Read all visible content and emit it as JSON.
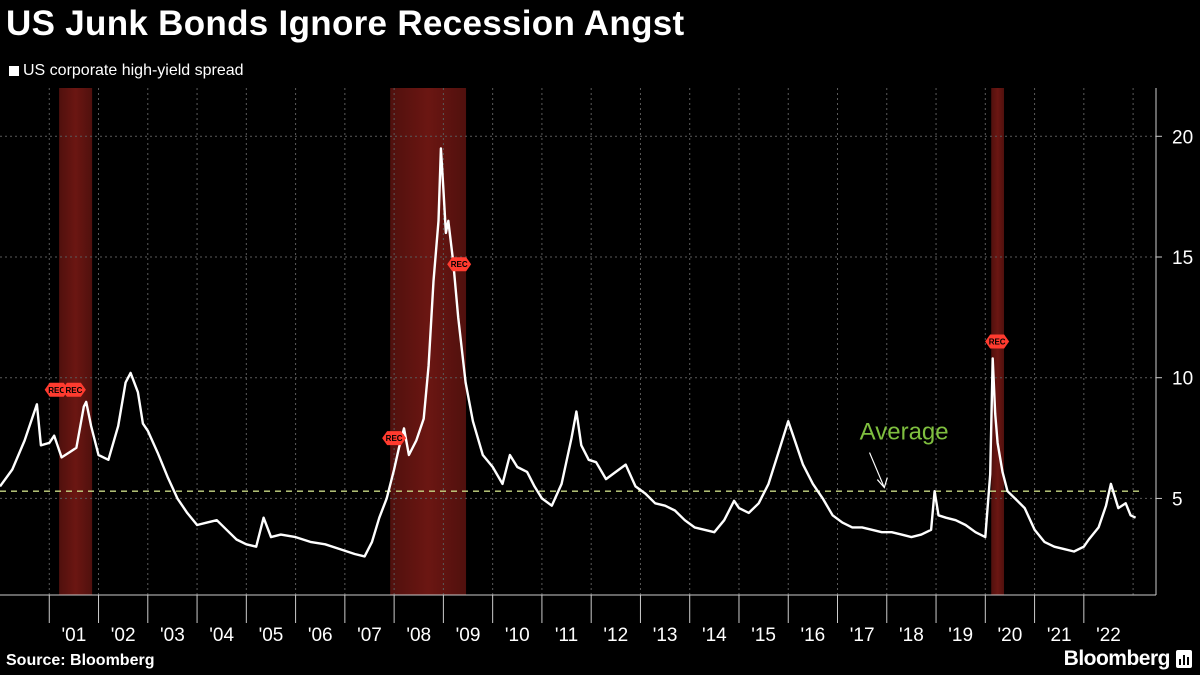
{
  "header": {
    "title": "US Junk Bonds Ignore Recession Angst",
    "legend_label": "US corporate high-yield spread"
  },
  "footer": {
    "source": "Source: Bloomberg",
    "brand": "Bloomberg"
  },
  "chart_data": {
    "type": "line",
    "series": [
      {
        "name": "US corporate high-yield spread",
        "x": [
          2000.0,
          2000.25,
          2000.5,
          2000.75,
          2000.83,
          2001.0,
          2001.1,
          2001.25,
          2001.4,
          2001.55,
          2001.7,
          2001.75,
          2001.85,
          2002.0,
          2002.2,
          2002.4,
          2002.55,
          2002.65,
          2002.8,
          2002.9,
          2003.0,
          2003.2,
          2003.4,
          2003.6,
          2003.8,
          2004.0,
          2004.2,
          2004.4,
          2004.6,
          2004.8,
          2005.0,
          2005.2,
          2005.35,
          2005.5,
          2005.7,
          2006.0,
          2006.3,
          2006.6,
          2006.9,
          2007.2,
          2007.4,
          2007.55,
          2007.7,
          2007.85,
          2008.0,
          2008.1,
          2008.2,
          2008.3,
          2008.45,
          2008.6,
          2008.7,
          2008.8,
          2008.9,
          2008.95,
          2009.0,
          2009.05,
          2009.1,
          2009.2,
          2009.3,
          2009.45,
          2009.6,
          2009.8,
          2010.0,
          2010.2,
          2010.35,
          2010.5,
          2010.7,
          2010.85,
          2011.0,
          2011.2,
          2011.4,
          2011.6,
          2011.7,
          2011.8,
          2011.95,
          2012.1,
          2012.3,
          2012.5,
          2012.7,
          2012.9,
          2013.1,
          2013.3,
          2013.5,
          2013.7,
          2013.9,
          2014.1,
          2014.3,
          2014.5,
          2014.7,
          2014.9,
          2015.0,
          2015.2,
          2015.4,
          2015.6,
          2015.8,
          2016.0,
          2016.1,
          2016.3,
          2016.5,
          2016.7,
          2016.9,
          2017.1,
          2017.3,
          2017.5,
          2017.7,
          2017.9,
          2018.1,
          2018.3,
          2018.5,
          2018.7,
          2018.9,
          2018.97,
          2019.05,
          2019.2,
          2019.4,
          2019.6,
          2019.8,
          2020.0,
          2020.1,
          2020.15,
          2020.2,
          2020.25,
          2020.35,
          2020.45,
          2020.6,
          2020.8,
          2021.0,
          2021.2,
          2021.4,
          2021.6,
          2021.8,
          2022.0,
          2022.1,
          2022.3,
          2022.45,
          2022.55,
          2022.7,
          2022.85,
          2022.95,
          2023.05
        ],
        "values": [
          5.5,
          6.2,
          7.4,
          8.9,
          7.2,
          7.3,
          7.6,
          6.7,
          6.9,
          7.1,
          8.8,
          9.0,
          8.0,
          6.8,
          6.6,
          8.0,
          9.8,
          10.2,
          9.4,
          8.1,
          7.8,
          6.9,
          5.9,
          5.0,
          4.4,
          3.9,
          4.0,
          4.1,
          3.7,
          3.3,
          3.1,
          3.0,
          4.2,
          3.4,
          3.5,
          3.4,
          3.2,
          3.1,
          2.9,
          2.7,
          2.6,
          3.2,
          4.2,
          5.0,
          6.2,
          7.1,
          7.9,
          6.8,
          7.4,
          8.3,
          10.5,
          14.0,
          16.5,
          19.5,
          17.8,
          16.0,
          16.5,
          14.8,
          12.5,
          9.8,
          8.2,
          6.8,
          6.3,
          5.6,
          6.8,
          6.3,
          6.1,
          5.5,
          5.0,
          4.7,
          5.6,
          7.5,
          8.6,
          7.2,
          6.6,
          6.5,
          5.8,
          6.1,
          6.4,
          5.5,
          5.2,
          4.8,
          4.7,
          4.5,
          4.1,
          3.8,
          3.7,
          3.6,
          4.1,
          4.9,
          4.6,
          4.4,
          4.8,
          5.6,
          6.9,
          8.2,
          7.6,
          6.4,
          5.6,
          5.0,
          4.3,
          4.0,
          3.8,
          3.8,
          3.7,
          3.6,
          3.6,
          3.5,
          3.4,
          3.5,
          3.7,
          5.3,
          4.3,
          4.2,
          4.1,
          3.9,
          3.6,
          3.4,
          6.0,
          10.8,
          8.5,
          7.3,
          6.1,
          5.3,
          5.0,
          4.6,
          3.7,
          3.2,
          3.0,
          2.9,
          2.8,
          3.0,
          3.3,
          3.8,
          4.7,
          5.6,
          4.6,
          4.8,
          4.3,
          4.2
        ]
      }
    ],
    "average": {
      "value": 5.3,
      "label": "Average"
    },
    "recessions": [
      {
        "start": 2001.2,
        "end": 2001.87
      },
      {
        "start": 2007.92,
        "end": 2009.46
      },
      {
        "start": 2020.12,
        "end": 2020.38
      }
    ],
    "rec_markers": [
      {
        "x": 2001.15,
        "y": 9.5
      },
      {
        "x": 2001.5,
        "y": 9.5
      },
      {
        "x": 2008.0,
        "y": 7.5
      },
      {
        "x": 2009.32,
        "y": 14.7
      },
      {
        "x": 2020.24,
        "y": 11.5
      }
    ],
    "rec_label": "REC",
    "xlim": [
      2000.0,
      2023.14
    ],
    "ylim": [
      1.0,
      22.0
    ],
    "yticks": [
      5,
      10,
      15,
      20
    ],
    "ytick_labels": [
      "5",
      "10",
      "15",
      "20"
    ],
    "xtick_labels": [
      "'01",
      "'02",
      "'03",
      "'04",
      "'05",
      "'06",
      "'07",
      "'08",
      "'09",
      "'10",
      "'11",
      "'12",
      "'13",
      "'14",
      "'15",
      "'16",
      "'17",
      "'18",
      "'19",
      "'20",
      "'21",
      "'22"
    ],
    "grid": true,
    "colors": {
      "line": "#ffffff",
      "average": "#c8d884",
      "average_label": "#7fbf3f",
      "recession": "#6b1612",
      "rec_marker": "#ff3b2f",
      "grid": "#5a5a5a"
    }
  }
}
